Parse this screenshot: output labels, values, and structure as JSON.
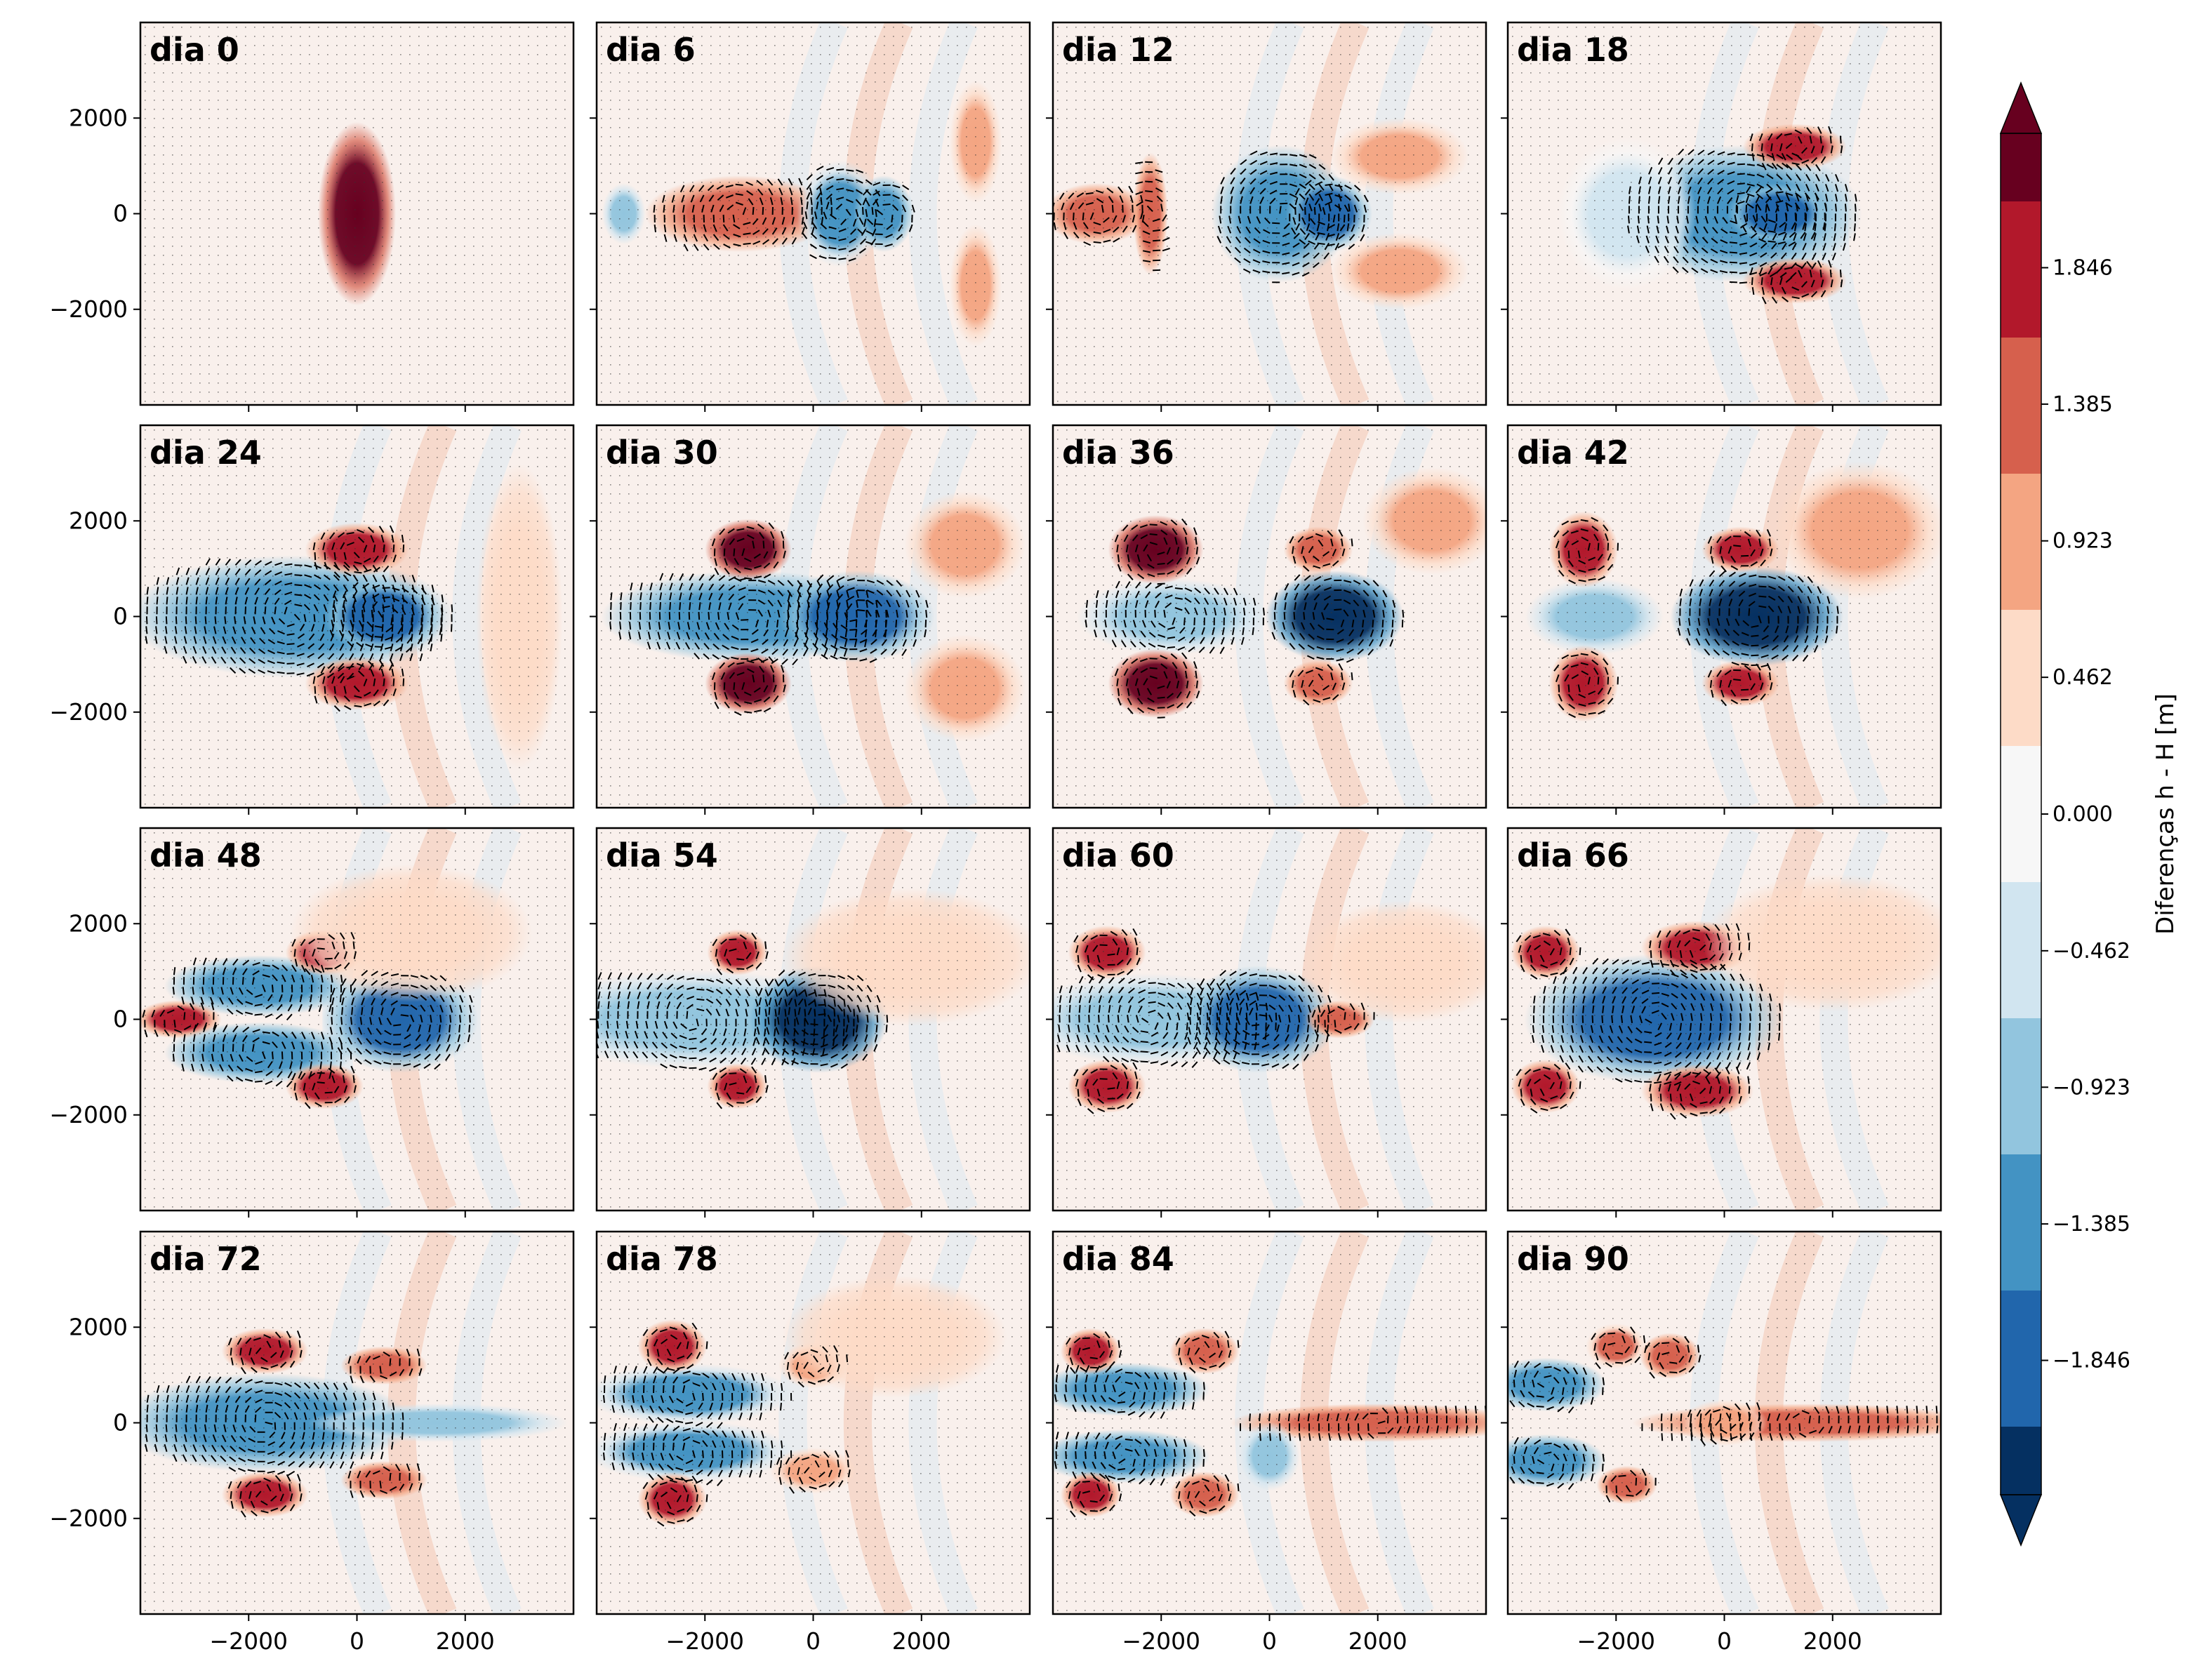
{
  "chart_data": {
    "type": "heatmap",
    "layout": {
      "rows": 4,
      "cols": 4
    },
    "panels": [
      {
        "title": "dia 0",
        "blobs": [
          [
            0,
            0,
            9,
            24,
            2.4
          ]
        ]
      },
      {
        "title": "dia 6",
        "blobs": [
          [
            -1350,
            0,
            22,
            10,
            1.4
          ],
          [
            -3500,
            0,
            5,
            8,
            -0.8
          ],
          [
            500,
            0,
            10,
            14,
            -1.2
          ],
          [
            1300,
            0,
            7,
            10,
            -1.5
          ],
          [
            3000,
            1500,
            6,
            16,
            0.8
          ],
          [
            3000,
            -1500,
            6,
            16,
            0.8
          ]
        ]
      },
      {
        "title": "dia 12",
        "blobs": [
          [
            -3200,
            0,
            12,
            8,
            1.3
          ],
          [
            -2200,
            0,
            4,
            16,
            1.5
          ],
          [
            200,
            0,
            16,
            18,
            -1.3
          ],
          [
            1100,
            0,
            10,
            10,
            -1.8
          ],
          [
            2400,
            1200,
            16,
            10,
            0.8
          ],
          [
            2400,
            -1200,
            16,
            10,
            0.8
          ]
        ]
      },
      {
        "title": "dia 18",
        "blobs": [
          [
            300,
            0,
            28,
            18,
            -1.5
          ],
          [
            1000,
            0,
            12,
            8,
            -2.0
          ],
          [
            1300,
            1400,
            12,
            6,
            1.8
          ],
          [
            1300,
            -1400,
            12,
            6,
            1.8
          ],
          [
            -1800,
            0,
            16,
            20,
            -0.4
          ]
        ]
      },
      {
        "title": "dia 24",
        "blobs": [
          [
            -1200,
            0,
            38,
            16,
            -1.4
          ],
          [
            500,
            0,
            14,
            10,
            -1.8
          ],
          [
            0,
            1400,
            12,
            7,
            1.9
          ],
          [
            0,
            -1400,
            12,
            7,
            1.9
          ],
          [
            3000,
            0,
            10,
            40,
            0.6
          ]
        ]
      },
      {
        "title": "dia 30",
        "blobs": [
          [
            -1200,
            0,
            34,
            12,
            -1.3
          ],
          [
            800,
            0,
            18,
            12,
            -2.0
          ],
          [
            -1200,
            1400,
            10,
            8,
            2.2
          ],
          [
            -1200,
            -1400,
            10,
            8,
            2.2
          ],
          [
            2800,
            1500,
            14,
            14,
            0.7
          ],
          [
            2800,
            -1500,
            14,
            14,
            0.7
          ]
        ]
      },
      {
        "title": "dia 36",
        "blobs": [
          [
            -1800,
            0,
            22,
            10,
            -1.1
          ],
          [
            1200,
            0,
            16,
            12,
            -2.2
          ],
          [
            -2100,
            1400,
            11,
            9,
            2.2
          ],
          [
            -2100,
            -1400,
            11,
            9,
            2.2
          ],
          [
            900,
            1400,
            8,
            6,
            1.6
          ],
          [
            900,
            -1400,
            8,
            6,
            1.6
          ],
          [
            3000,
            2000,
            16,
            14,
            0.7
          ]
        ]
      },
      {
        "title": "dia 42",
        "blobs": [
          [
            -2400,
            0,
            16,
            10,
            -0.9
          ],
          [
            600,
            0,
            20,
            13,
            -2.2
          ],
          [
            -2600,
            1400,
            8,
            10,
            1.9
          ],
          [
            -2600,
            -1400,
            8,
            10,
            1.9
          ],
          [
            300,
            1400,
            9,
            6,
            1.7
          ],
          [
            300,
            -1400,
            9,
            6,
            1.7
          ],
          [
            2500,
            1800,
            20,
            18,
            0.7
          ]
        ]
      },
      {
        "title": "dia 48",
        "blobs": [
          [
            -3300,
            0,
            10,
            5,
            2.0
          ],
          [
            -1800,
            700,
            22,
            8,
            -1.3
          ],
          [
            -1800,
            -700,
            22,
            8,
            -1.3
          ],
          [
            800,
            0,
            18,
            14,
            -1.9
          ],
          [
            -600,
            1400,
            9,
            6,
            1.8
          ],
          [
            -600,
            -1400,
            9,
            6,
            1.8
          ],
          [
            1000,
            1800,
            28,
            18,
            0.6
          ]
        ]
      },
      {
        "title": "dia 54",
        "blobs": [
          [
            -2200,
            0,
            38,
            13,
            -1.1
          ],
          [
            100,
            0,
            16,
            14,
            -2.1
          ],
          [
            -1400,
            1400,
            7,
            6,
            1.8
          ],
          [
            -1400,
            -1400,
            7,
            6,
            1.8
          ],
          [
            1800,
            1300,
            30,
            18,
            0.5
          ]
        ]
      },
      {
        "title": "dia 60",
        "blobs": [
          [
            -2200,
            0,
            30,
            12,
            -1.1
          ],
          [
            -200,
            0,
            18,
            14,
            -1.9
          ],
          [
            -3000,
            1400,
            9,
            7,
            2.0
          ],
          [
            -3000,
            -1400,
            9,
            7,
            2.0
          ],
          [
            1300,
            0,
            8,
            5,
            1.5
          ],
          [
            2500,
            1200,
            24,
            16,
            0.6
          ]
        ]
      },
      {
        "title": "dia 66",
        "blobs": [
          [
            -1300,
            0,
            30,
            17,
            -1.9
          ],
          [
            -3300,
            1400,
            8,
            7,
            2.0
          ],
          [
            -3300,
            -1400,
            8,
            7,
            2.0
          ],
          [
            -500,
            1500,
            13,
            7,
            2.0
          ],
          [
            -500,
            -1500,
            13,
            7,
            2.0
          ],
          [
            2000,
            1600,
            30,
            18,
            0.6
          ]
        ]
      },
      {
        "title": "dia 72",
        "blobs": [
          [
            -1700,
            0,
            34,
            13,
            -1.6
          ],
          [
            1500,
            0,
            30,
            5,
            -0.7
          ],
          [
            -1700,
            1500,
            10,
            6,
            1.8
          ],
          [
            -1700,
            -1500,
            10,
            6,
            1.8
          ],
          [
            500,
            1200,
            10,
            5,
            1.3
          ],
          [
            500,
            -1200,
            10,
            5,
            1.3
          ]
        ]
      },
      {
        "title": "dia 78",
        "blobs": [
          [
            -2300,
            600,
            24,
            8,
            -1.2
          ],
          [
            -2300,
            -600,
            24,
            8,
            -1.2
          ],
          [
            -2600,
            1600,
            8,
            7,
            1.9
          ],
          [
            -2600,
            -1600,
            8,
            7,
            1.9
          ],
          [
            0,
            1200,
            8,
            6,
            1.0
          ],
          [
            0,
            -1000,
            10,
            6,
            1.0
          ],
          [
            1500,
            1800,
            26,
            16,
            0.6
          ]
        ]
      },
      {
        "title": "dia 84",
        "blobs": [
          [
            -2700,
            700,
            20,
            7,
            -1.5
          ],
          [
            -2700,
            -700,
            20,
            7,
            -1.5
          ],
          [
            -3300,
            1500,
            7,
            6,
            1.8
          ],
          [
            -3300,
            -1500,
            7,
            6,
            1.8
          ],
          [
            -1200,
            1500,
            8,
            6,
            1.6
          ],
          [
            -1200,
            -1500,
            8,
            6,
            1.6
          ],
          [
            2000,
            0,
            34,
            5,
            1.3
          ],
          [
            0,
            -700,
            7,
            9,
            -0.8
          ]
        ]
      },
      {
        "title": "dia 90",
        "blobs": [
          [
            -3300,
            800,
            14,
            7,
            -1.6
          ],
          [
            -3300,
            -800,
            14,
            7,
            -1.6
          ],
          [
            -2000,
            1600,
            7,
            6,
            1.2
          ],
          [
            -1800,
            -1300,
            7,
            5,
            1.6
          ],
          [
            -1000,
            1400,
            7,
            6,
            1.6
          ],
          [
            1500,
            0,
            40,
            5,
            1.5
          ],
          [
            0,
            0,
            10,
            6,
            1.0
          ]
        ]
      }
    ],
    "x_ticks": [
      "−2000",
      "0",
      "2000"
    ],
    "y_ticks": [
      "2000",
      "0",
      "−2000"
    ],
    "xlim": [
      -4000,
      4000
    ],
    "ylim": [
      -4000,
      4000
    ],
    "colorbar": {
      "label": "Diferenças h - H [m]",
      "tick_labels": [
        "−1.846",
        "−1.385",
        "−0.923",
        "−0.462",
        "0.000",
        "0.462",
        "0.923",
        "1.385",
        "1.846"
      ],
      "range": [
        -2.3,
        2.3
      ],
      "levels": 20,
      "extend": "both"
    },
    "colormap": [
      "#053061",
      "#2166ac",
      "#4393c3",
      "#92c5de",
      "#d1e5f0",
      "#f7f7f7",
      "#fddbc7",
      "#f4a582",
      "#d6604d",
      "#b2182b",
      "#67001f"
    ]
  }
}
